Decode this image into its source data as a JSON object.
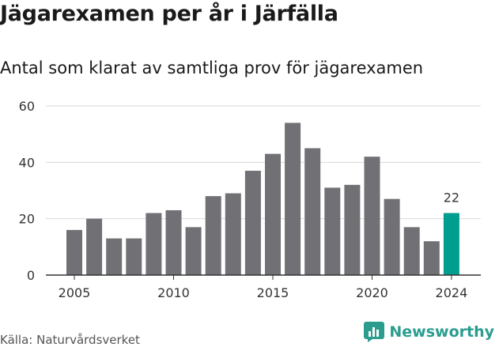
{
  "title": "Jägarexamen per år i Järfälla",
  "subtitle": "Antal som klarat av samtliga prov för jägarexamen",
  "source": "Källa: Naturvårdsverket",
  "brand": {
    "name": "Newsworthy",
    "icon": "bar-chart-logo-icon"
  },
  "colors": {
    "bar": "#717075",
    "highlight": "#009e8f",
    "grid": "#d9d9d9",
    "axis": "#333333",
    "brand": "#2a9d8f"
  },
  "chart_data": {
    "type": "bar",
    "x": [
      2005,
      2006,
      2007,
      2008,
      2009,
      2010,
      2011,
      2012,
      2013,
      2014,
      2015,
      2016,
      2017,
      2018,
      2019,
      2020,
      2021,
      2022,
      2023,
      2024
    ],
    "values": [
      16,
      20,
      13,
      13,
      22,
      23,
      17,
      28,
      29,
      37,
      43,
      54,
      45,
      31,
      32,
      42,
      27,
      17,
      12,
      22
    ],
    "x_tick_labels": [
      "2005",
      "2010",
      "2015",
      "2020",
      "2024"
    ],
    "y_ticks": [
      0,
      20,
      40,
      60
    ],
    "ylim": [
      0,
      60
    ],
    "highlight_year": 2024,
    "data_labels": [
      {
        "x": 2024,
        "label": "22"
      }
    ],
    "grid": true,
    "xlabel": "",
    "ylabel": ""
  }
}
